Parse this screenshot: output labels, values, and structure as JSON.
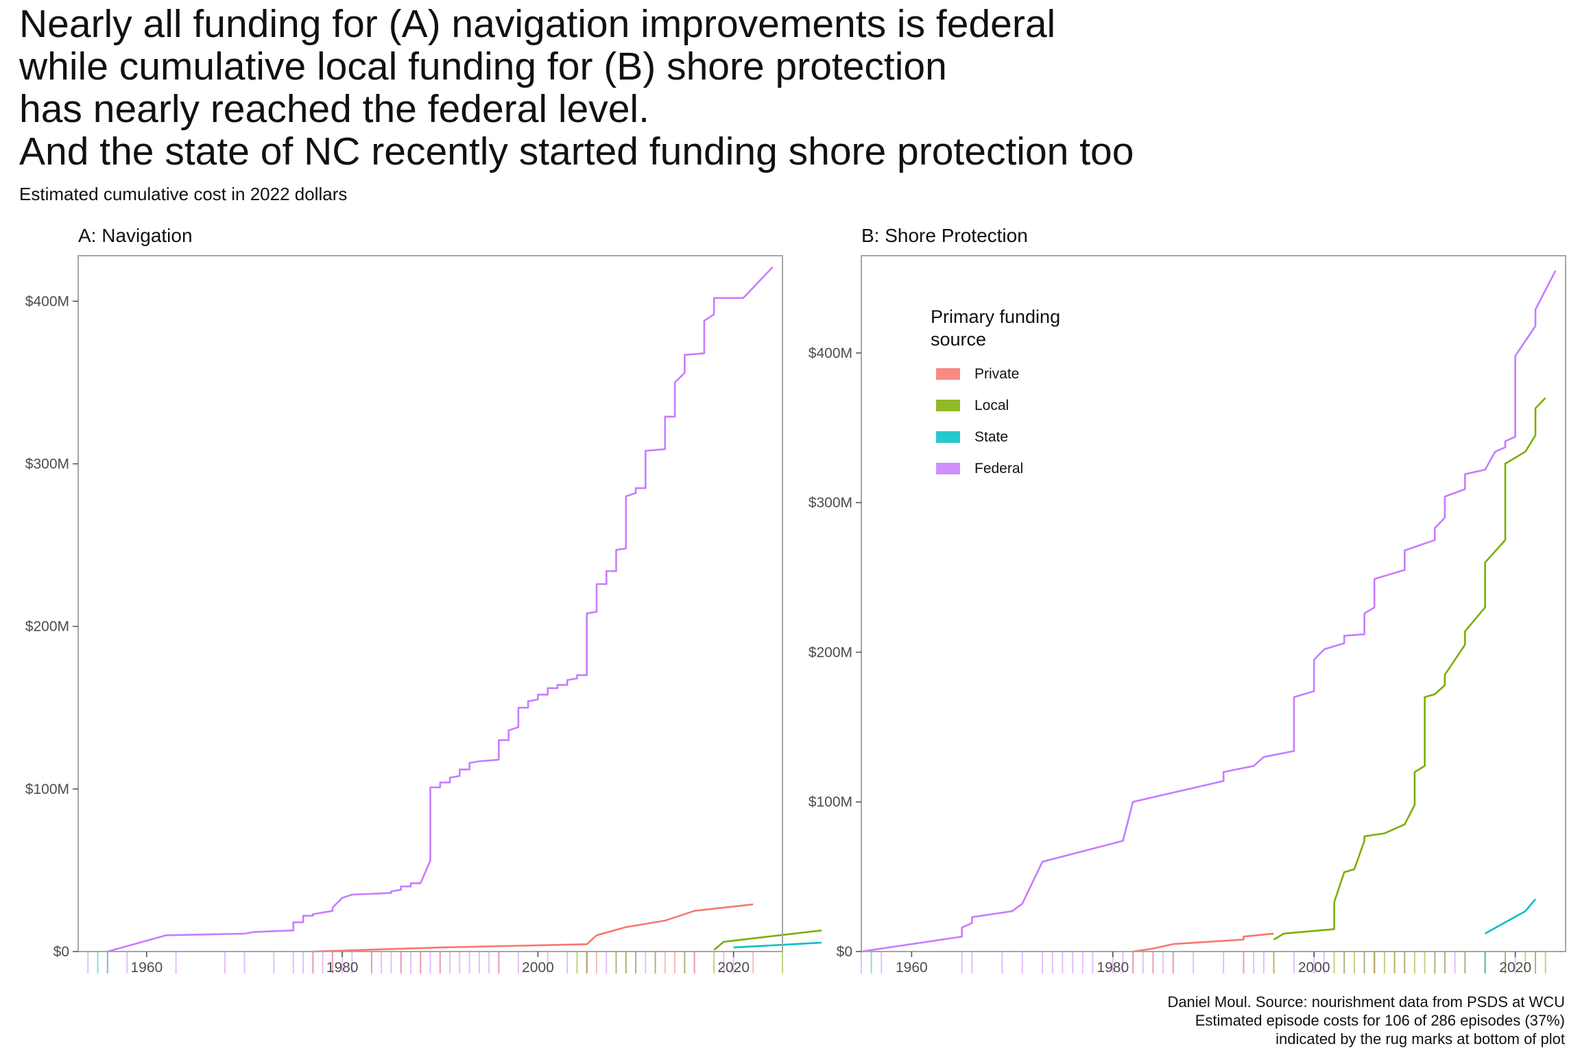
{
  "title_lines": [
    "Nearly all funding for (A) navigation improvements is federal",
    "while cumulative local funding for (B) shore protection",
    "has nearly reached the federal level.",
    "And the state of NC recently started funding shore protection too"
  ],
  "subtitle": "Estimated cumulative cost in 2022 dollars",
  "caption_lines": [
    "Daniel Moul. Source: nourishment data from PSDS at WCU",
    "Estimated episode costs for 106 of 286 episodes (37%)",
    "indicated by the rug marks at bottom of plot"
  ],
  "legend": {
    "title_lines": [
      "Primary funding",
      "source"
    ],
    "items": [
      {
        "label": "Private",
        "color": "#F8766D"
      },
      {
        "label": "Local",
        "color": "#7CAE00"
      },
      {
        "label": "State",
        "color": "#00BFC4"
      },
      {
        "label": "Federal",
        "color": "#C77CFF"
      }
    ]
  },
  "chart_data": [
    {
      "type": "line",
      "panel_title": "A: Navigation",
      "xlabel": "",
      "ylabel": "",
      "xlim": [
        1953,
        2025
      ],
      "ylim": [
        0,
        428
      ],
      "x_ticks": [
        1960,
        1980,
        2000,
        2020
      ],
      "y_ticks": [
        0,
        100,
        200,
        300,
        400
      ],
      "y_tick_labels": [
        "$0",
        "$100M",
        "$200M",
        "$300M",
        "$400M"
      ],
      "grid": false,
      "series": [
        {
          "name": "Federal",
          "color": "#C77CFF",
          "points": [
            [
              1956,
              0
            ],
            [
              1962,
              10
            ],
            [
              1970,
              11
            ],
            [
              1971,
              12
            ],
            [
              1975,
              13
            ],
            [
              1975,
              18
            ],
            [
              1976,
              18
            ],
            [
              1976,
              22
            ],
            [
              1977,
              22
            ],
            [
              1977,
              23
            ],
            [
              1979,
              25
            ],
            [
              1979,
              27
            ],
            [
              1980,
              33
            ],
            [
              1981,
              35
            ],
            [
              1985,
              36
            ],
            [
              1985,
              37
            ],
            [
              1986,
              38
            ],
            [
              1986,
              40
            ],
            [
              1987,
              40
            ],
            [
              1987,
              42
            ],
            [
              1988,
              42
            ],
            [
              1989,
              56
            ],
            [
              1989,
              101
            ],
            [
              1990,
              101
            ],
            [
              1990,
              104
            ],
            [
              1991,
              104
            ],
            [
              1991,
              107
            ],
            [
              1992,
              108
            ],
            [
              1992,
              112
            ],
            [
              1993,
              112
            ],
            [
              1993,
              116
            ],
            [
              1994,
              117
            ],
            [
              1996,
              118
            ],
            [
              1996,
              130
            ],
            [
              1997,
              130
            ],
            [
              1997,
              136
            ],
            [
              1998,
              138
            ],
            [
              1998,
              150
            ],
            [
              1999,
              150
            ],
            [
              1999,
              154
            ],
            [
              2000,
              155
            ],
            [
              2000,
              158
            ],
            [
              2001,
              158
            ],
            [
              2001,
              162
            ],
            [
              2002,
              162
            ],
            [
              2002,
              164
            ],
            [
              2003,
              164
            ],
            [
              2003,
              167
            ],
            [
              2004,
              168
            ],
            [
              2004,
              170
            ],
            [
              2005,
              170
            ],
            [
              2005,
              208
            ],
            [
              2006,
              209
            ],
            [
              2006,
              226
            ],
            [
              2007,
              226
            ],
            [
              2007,
              234
            ],
            [
              2008,
              234
            ],
            [
              2008,
              247
            ],
            [
              2009,
              248
            ],
            [
              2009,
              280
            ],
            [
              2010,
              282
            ],
            [
              2010,
              285
            ],
            [
              2011,
              285
            ],
            [
              2011,
              308
            ],
            [
              2013,
              309
            ],
            [
              2013,
              329
            ],
            [
              2014,
              329
            ],
            [
              2014,
              350
            ],
            [
              2015,
              356
            ],
            [
              2015,
              367
            ],
            [
              2017,
              368
            ],
            [
              2017,
              388
            ],
            [
              2018,
              392
            ],
            [
              2018,
              402
            ],
            [
              2021,
              402
            ],
            [
              2024,
              421
            ]
          ]
        },
        {
          "name": "Private",
          "color": "#F8766D",
          "points": [
            [
              1977,
              0
            ],
            [
              1990,
              2.5
            ],
            [
              2005,
              4.5
            ],
            [
              2006,
              10
            ],
            [
              2009,
              15
            ],
            [
              2013,
              19
            ],
            [
              2014,
              21
            ],
            [
              2016,
              25
            ],
            [
              2022,
              29
            ]
          ]
        },
        {
          "name": "Local",
          "color": "#7CAE00",
          "points": [
            [
              2018,
              1
            ],
            [
              2019,
              6
            ],
            [
              2029,
              13
            ]
          ]
        },
        {
          "name": "State",
          "color": "#00BFC4",
          "points": [
            [
              2020,
              2.5
            ],
            [
              2029,
              5.5
            ]
          ]
        }
      ],
      "rug_years": [
        {
          "color": "#C77CFF",
          "years": [
            1954,
            1956,
            1958,
            1963,
            1968,
            1970,
            1973,
            1975,
            1976,
            1977,
            1978,
            1979,
            1980,
            1981,
            1983,
            1984,
            1985,
            1986,
            1987,
            1988,
            1989,
            1990,
            1991,
            1992,
            1993,
            1994,
            1995,
            1996,
            1998,
            2001,
            2003,
            2005,
            2007,
            2008,
            2010,
            2011,
            2012,
            2015,
            2016,
            2019,
            2020
          ]
        },
        {
          "color": "#F8766D",
          "years": [
            1977,
            1979,
            1983,
            1986,
            1988,
            1990,
            1996,
            2005,
            2006,
            2009,
            2013,
            2014,
            2016,
            2022
          ]
        },
        {
          "color": "#7CAE00",
          "years": [
            2004,
            2005,
            2008,
            2009,
            2010,
            2012,
            2015,
            2018,
            2025
          ]
        },
        {
          "color": "#00BFC4",
          "years": [
            1955,
            1956
          ]
        }
      ]
    },
    {
      "type": "line",
      "panel_title": "B: Shore Protection",
      "xlabel": "",
      "ylabel": "",
      "xlim": [
        1955,
        2025
      ],
      "ylim": [
        0,
        465
      ],
      "x_ticks": [
        1960,
        1980,
        2000,
        2020
      ],
      "y_ticks": [
        0,
        100,
        200,
        300,
        400
      ],
      "y_tick_labels": [
        "$0",
        "$100M",
        "$200M",
        "$300M",
        "$400M"
      ],
      "grid": false,
      "series": [
        {
          "name": "Federal",
          "color": "#C77CFF",
          "points": [
            [
              1955,
              0
            ],
            [
              1965,
              10
            ],
            [
              1965,
              16
            ],
            [
              1966,
              19
            ],
            [
              1966,
              23
            ],
            [
              1970,
              27
            ],
            [
              1971,
              32
            ],
            [
              1973,
              60
            ],
            [
              1981,
              74
            ],
            [
              1982,
              100
            ],
            [
              1991,
              114
            ],
            [
              1991,
              120
            ],
            [
              1994,
              124
            ],
            [
              1995,
              130
            ],
            [
              1998,
              134
            ],
            [
              1998,
              170
            ],
            [
              2000,
              174
            ],
            [
              2000,
              195
            ],
            [
              2001,
              202
            ],
            [
              2003,
              206
            ],
            [
              2003,
              211
            ],
            [
              2005,
              212
            ],
            [
              2005,
              226
            ],
            [
              2006,
              230
            ],
            [
              2006,
              249
            ],
            [
              2009,
              255
            ],
            [
              2009,
              268
            ],
            [
              2012,
              275
            ],
            [
              2012,
              283
            ],
            [
              2013,
              290
            ],
            [
              2013,
              304
            ],
            [
              2015,
              309
            ],
            [
              2015,
              319
            ],
            [
              2017,
              322
            ],
            [
              2018,
              334
            ],
            [
              2019,
              337
            ],
            [
              2019,
              341
            ],
            [
              2020,
              344
            ],
            [
              2020,
              398
            ],
            [
              2022,
              418
            ],
            [
              2022,
              429
            ],
            [
              2024,
              455
            ]
          ]
        },
        {
          "name": "Local",
          "color": "#7CAE00",
          "points": [
            [
              1996,
              8
            ],
            [
              1997,
              12
            ],
            [
              2002,
              15
            ],
            [
              2002,
              33
            ],
            [
              2003,
              53
            ],
            [
              2004,
              55
            ],
            [
              2005,
              74
            ],
            [
              2005,
              77
            ],
            [
              2007,
              79
            ],
            [
              2009,
              85
            ],
            [
              2010,
              98
            ],
            [
              2010,
              120
            ],
            [
              2011,
              124
            ],
            [
              2011,
              170
            ],
            [
              2012,
              172
            ],
            [
              2013,
              178
            ],
            [
              2013,
              185
            ],
            [
              2015,
              205
            ],
            [
              2015,
              214
            ],
            [
              2017,
              230
            ],
            [
              2017,
              260
            ],
            [
              2019,
              275
            ],
            [
              2019,
              326
            ],
            [
              2021,
              334
            ],
            [
              2022,
              345
            ],
            [
              2022,
              363
            ],
            [
              2023,
              370
            ]
          ]
        },
        {
          "name": "Private",
          "color": "#F8766D",
          "points": [
            [
              1982,
              0
            ],
            [
              1984,
              2
            ],
            [
              1986,
              5
            ],
            [
              1993,
              8
            ],
            [
              1993,
              10
            ],
            [
              1996,
              12
            ]
          ]
        },
        {
          "name": "State",
          "color": "#00BFC4",
          "points": [
            [
              2017,
              12
            ],
            [
              2021,
              27
            ],
            [
              2022,
              35
            ]
          ]
        }
      ],
      "rug_years": [
        {
          "color": "#C77CFF",
          "years": [
            1955,
            1957,
            1965,
            1966,
            1969,
            1971,
            1973,
            1974,
            1975,
            1976,
            1977,
            1978,
            1980,
            1981,
            1982,
            1983,
            1984,
            1985,
            1986,
            1988,
            1991,
            1993,
            1994,
            1995,
            1998,
            2000,
            2001,
            2003,
            2005,
            2006,
            2009,
            2012,
            2013,
            2014,
            2015,
            2017,
            2019,
            2020,
            2022
          ]
        },
        {
          "color": "#F8766D",
          "years": [
            1982,
            1984,
            1986,
            1993,
            1996,
            2006,
            2008
          ]
        },
        {
          "color": "#7CAE00",
          "years": [
            1996,
            2002,
            2003,
            2004,
            2005,
            2006,
            2007,
            2008,
            2009,
            2010,
            2011,
            2012,
            2013,
            2015,
            2017,
            2019,
            2021,
            2022,
            2023
          ]
        },
        {
          "color": "#00BFC4",
          "years": [
            1956,
            2017
          ]
        }
      ]
    }
  ]
}
